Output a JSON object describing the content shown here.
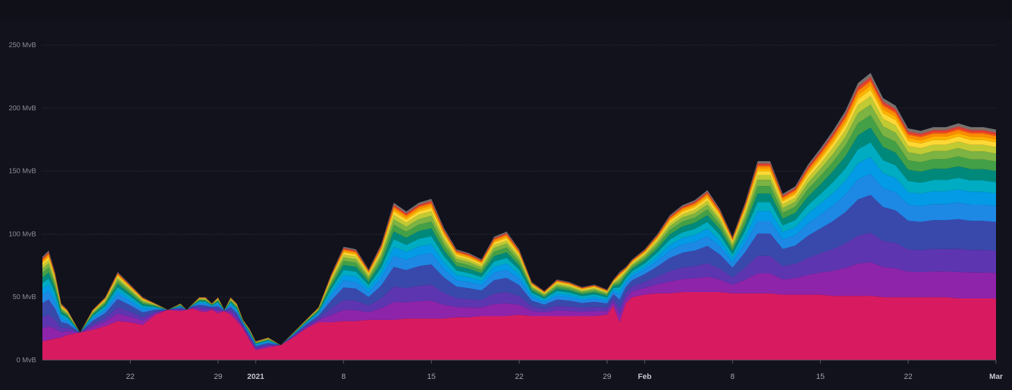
{
  "chart_data": {
    "type": "area",
    "stacked": true,
    "title": "",
    "xlabel": "",
    "ylabel": "",
    "ylim": [
      0,
      260
    ],
    "y_unit": "MvB",
    "y_ticks": [
      "0 MvB",
      "50 MvB",
      "100 MvB",
      "150 MvB",
      "200 MvB",
      "250 MvB"
    ],
    "y_tick_values": [
      0,
      50,
      100,
      150,
      200,
      250
    ],
    "x_ticks": [
      {
        "label": "22",
        "day": 7,
        "major": false
      },
      {
        "label": "29",
        "day": 14,
        "major": false
      },
      {
        "label": "2021",
        "day": 17,
        "major": true
      },
      {
        "label": "8",
        "day": 24,
        "major": false
      },
      {
        "label": "15",
        "day": 31,
        "major": false
      },
      {
        "label": "22",
        "day": 38,
        "major": false
      },
      {
        "label": "29",
        "day": 45,
        "major": false
      },
      {
        "label": "Feb",
        "day": 48,
        "major": true
      },
      {
        "label": "8",
        "day": 55,
        "major": false
      },
      {
        "label": "15",
        "day": 62,
        "major": false
      },
      {
        "label": "22",
        "day": 69,
        "major": false
      },
      {
        "label": "Mar",
        "day": 76,
        "major": true
      }
    ],
    "x_range": [
      0,
      76
    ],
    "grid": true,
    "legend": "none",
    "background": "#11121b",
    "layer_colors": [
      "#d81b60",
      "#8e24aa",
      "#5e35b1",
      "#3949ab",
      "#1e88e5",
      "#039be5",
      "#00acc1",
      "#00897b",
      "#43a047",
      "#7cb342",
      "#c0ca33",
      "#fdd835",
      "#ffb300",
      "#fb8c00",
      "#f4511e",
      "#e53935",
      "#8d6e63",
      "#757575"
    ],
    "x": [
      0,
      0.5,
      1,
      1.5,
      2,
      3,
      4,
      5,
      6,
      7,
      8,
      9,
      10,
      11,
      11.5,
      12,
      12.5,
      13,
      13.5,
      14,
      14.5,
      15,
      15.5,
      16,
      16.5,
      17,
      18,
      19,
      20,
      21,
      22,
      23,
      24,
      25,
      26,
      27,
      28,
      29,
      30,
      31,
      32,
      33,
      34,
      35,
      36,
      37,
      38,
      39,
      40,
      41,
      42,
      43,
      44,
      45,
      45.5,
      46,
      46.5,
      47,
      48,
      49,
      50,
      51,
      52,
      53,
      54,
      55,
      56,
      57,
      58,
      59,
      60,
      61,
      62,
      63,
      64,
      65,
      66,
      67,
      68,
      69,
      70,
      71,
      72,
      73,
      74,
      75,
      76
    ],
    "totals": [
      82,
      87,
      70,
      45,
      40,
      20,
      40,
      50,
      70,
      60,
      50,
      45,
      40,
      45,
      40,
      45,
      50,
      50,
      45,
      50,
      40,
      50,
      45,
      32,
      25,
      15,
      18,
      12,
      22,
      32,
      42,
      68,
      90,
      88,
      72,
      92,
      125,
      118,
      125,
      128,
      105,
      88,
      85,
      80,
      98,
      102,
      88,
      62,
      55,
      64,
      62,
      58,
      60,
      56,
      64,
      70,
      74,
      80,
      88,
      100,
      115,
      123,
      127,
      135,
      120,
      98,
      125,
      158,
      158,
      132,
      138,
      155,
      168,
      182,
      198,
      220,
      228,
      208,
      202,
      184,
      182,
      185,
      185,
      188,
      185,
      185,
      183
    ],
    "base_series": {
      "name": "",
      "values": [
        15,
        16,
        17,
        18,
        20,
        22,
        24,
        27,
        31,
        30,
        28,
        36,
        40,
        39,
        40,
        41,
        39,
        38,
        40,
        37,
        39,
        36,
        31,
        25,
        16,
        8,
        10,
        12,
        18,
        25,
        30,
        30,
        31,
        31,
        32,
        32,
        32,
        33,
        33,
        33,
        33,
        34,
        34,
        35,
        35,
        35,
        36,
        35,
        35,
        35,
        35,
        35,
        35,
        36,
        43,
        30,
        45,
        50,
        52,
        53,
        53,
        54,
        54,
        54,
        54,
        53,
        53,
        53,
        53,
        52,
        52,
        52,
        52,
        51,
        51,
        51,
        51,
        50,
        50,
        50,
        50,
        50,
        50,
        49,
        49,
        49,
        49
      ]
    },
    "layer_weights": [
      38,
      16,
      14,
      18,
      10,
      8,
      7,
      7,
      6,
      5,
      4,
      3,
      2,
      2,
      1,
      1,
      1,
      1
    ]
  }
}
